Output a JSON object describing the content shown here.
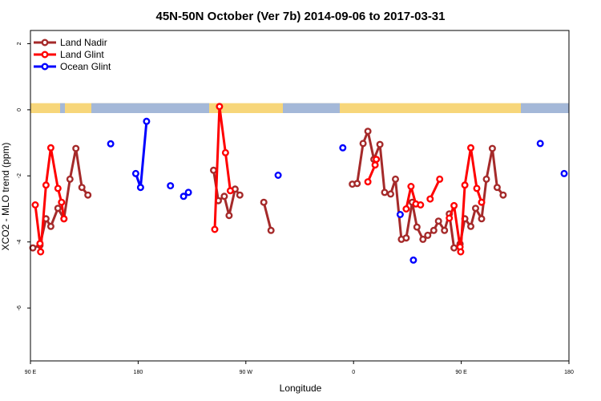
{
  "chart_data": {
    "type": "line",
    "title": "45N-50N October (Ver 7b)   2014-09-06 to 2017-03-31",
    "xlabel": "Longitude",
    "ylabel": "XCO2 - MLO trend (ppm)",
    "x_ticks": [
      {
        "value": 90,
        "label": "90 E"
      },
      {
        "value": 180,
        "label": "180"
      },
      {
        "value": 270,
        "label": "90 W"
      },
      {
        "value": 360,
        "label": "0"
      },
      {
        "value": 450,
        "label": "90 E"
      },
      {
        "value": 540,
        "label": "180"
      }
    ],
    "y_ticks": [
      {
        "value": 2,
        "label": "2"
      },
      {
        "value": 0,
        "label": "0"
      },
      {
        "value": -2,
        "label": "-2"
      },
      {
        "value": -4,
        "label": "-4"
      },
      {
        "value": -6,
        "label": "-6"
      }
    ],
    "xlim": [
      90,
      540
    ],
    "ylim": [
      -7.6,
      2.4
    ],
    "legend_position": "top-left",
    "land_ocean_band": {
      "y_range": [
        -0.1,
        0.2
      ],
      "land_color": "#f7d67a",
      "ocean_color": "#a4b8d8"
    },
    "series": [
      {
        "name": "Land Nadir",
        "color": "#a52a2a",
        "segments": [
          [
            [
              92,
              -4.18
            ],
            [
              98,
              -4.1
            ],
            [
              103,
              -3.3
            ],
            [
              107,
              -3.53
            ],
            [
              113,
              -2.98
            ],
            [
              118,
              -3.3
            ],
            [
              123,
              -2.1
            ],
            [
              128,
              -1.17
            ],
            [
              133,
              -2.35
            ],
            [
              138,
              -2.58
            ]
          ],
          [
            [
              243,
              -1.83
            ],
            [
              247,
              -2.75
            ],
            [
              252,
              -2.62
            ],
            [
              256,
              -3.2
            ],
            [
              261,
              -2.4
            ],
            [
              265,
              -2.58
            ]
          ],
          [
            [
              285,
              -2.8
            ],
            [
              291,
              -3.65
            ]
          ],
          [
            [
              359,
              -2.25
            ],
            [
              363,
              -2.23
            ],
            [
              368,
              -1.02
            ],
            [
              372,
              -0.65
            ],
            [
              377,
              -1.5
            ],
            [
              382,
              -1.05
            ],
            [
              386,
              -2.5
            ],
            [
              391,
              -2.55
            ],
            [
              395,
              -2.1
            ],
            [
              400,
              -3.92
            ],
            [
              404,
              -3.88
            ],
            [
              409,
              -2.8
            ],
            [
              413,
              -3.55
            ],
            [
              418,
              -3.92
            ],
            [
              422,
              -3.8
            ],
            [
              427,
              -3.65
            ],
            [
              431,
              -3.37
            ],
            [
              436,
              -3.65
            ],
            [
              440,
              -3.15
            ],
            [
              444,
              -4.18
            ],
            [
              449,
              -4.06
            ],
            [
              453,
              -3.3
            ],
            [
              458,
              -3.53
            ],
            [
              462,
              -2.98
            ],
            [
              467,
              -3.3
            ],
            [
              471,
              -2.1
            ],
            [
              476,
              -1.17
            ],
            [
              480,
              -2.35
            ],
            [
              485,
              -2.58
            ]
          ]
        ]
      },
      {
        "name": "Land Glint",
        "color": "#ff0000",
        "segments": [
          [
            [
              94,
              -2.88
            ],
            [
              98,
              -4.05
            ],
            [
              98.5,
              -4.3
            ],
            [
              103,
              -2.28
            ],
            [
              107,
              -1.15
            ],
            [
              113,
              -2.38
            ],
            [
              116,
              -2.8
            ],
            [
              118,
              -3.3
            ]
          ],
          [
            [
              244,
              -3.62
            ],
            [
              248,
              0.1
            ],
            [
              253,
              -1.3
            ],
            [
              257,
              -2.45
            ]
          ],
          [
            [
              372,
              -2.18
            ],
            [
              378,
              -1.67
            ],
            [
              379,
              -1.5
            ]
          ],
          [
            [
              404,
              -3.0
            ],
            [
              408,
              -2.32
            ],
            [
              412,
              -2.85
            ],
            [
              416,
              -2.88
            ]
          ],
          [
            [
              424,
              -2.7
            ],
            [
              432,
              -2.1
            ]
          ],
          [
            [
              440,
              -3.28
            ],
            [
              444,
              -2.9
            ],
            [
              449,
              -4.15
            ],
            [
              449.5,
              -4.3
            ],
            [
              453,
              -2.28
            ],
            [
              458,
              -1.15
            ],
            [
              463,
              -2.38
            ],
            [
              467,
              -2.8
            ]
          ]
        ]
      },
      {
        "name": "Ocean Glint",
        "color": "#0000ff",
        "segments": [
          [
            [
              157,
              -1.03
            ]
          ],
          [
            [
              178,
              -1.93
            ],
            [
              182,
              -2.35
            ],
            [
              187,
              -0.35
            ]
          ],
          [
            [
              207,
              -2.3
            ]
          ],
          [
            [
              218,
              -2.62
            ],
            [
              222,
              -2.5
            ]
          ],
          [
            [
              297,
              -1.98
            ]
          ],
          [
            [
              351,
              -1.15
            ]
          ],
          [
            [
              399,
              -3.17
            ]
          ],
          [
            [
              410,
              -4.55
            ]
          ],
          [
            [
              516,
              -1.02
            ]
          ],
          [
            [
              536,
              -1.93
            ]
          ]
        ]
      }
    ]
  }
}
